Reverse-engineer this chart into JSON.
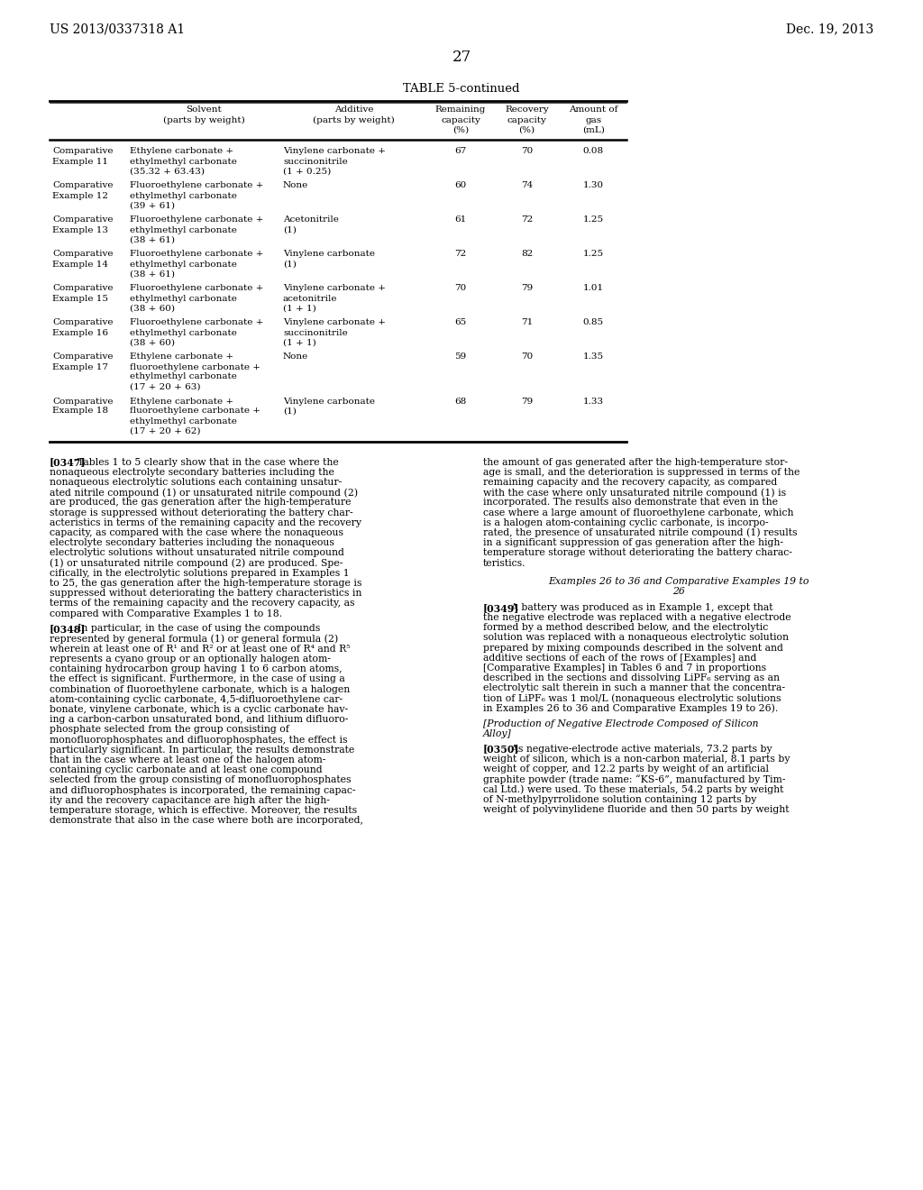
{
  "page_number": "27",
  "patent_number": "US 2013/0337318 A1",
  "patent_date": "Dec. 19, 2013",
  "table_title": "TABLE 5-continued",
  "col_headers_line1": [
    "",
    "Solvent",
    "Additive",
    "Remaining",
    "Recovery",
    "Amount of"
  ],
  "col_headers_line2": [
    "",
    "(parts by weight)",
    "(parts by weight)",
    "capacity",
    "capacity",
    "gas"
  ],
  "col_headers_line3": [
    "",
    "",
    "",
    "(%)",
    "(%)",
    "(mL)"
  ],
  "table_rows": [
    [
      "Comparative\nExample 11",
      "Ethylene carbonate +\nethylmethyl carbonate\n(35.32 + 63.43)",
      "Vinylene carbonate +\nsuccinonitrile\n(1 + 0.25)",
      "67",
      "70",
      "0.08"
    ],
    [
      "Comparative\nExample 12",
      "Fluoroethylene carbonate +\nethylmethyl carbonate\n(39 + 61)",
      "None",
      "60",
      "74",
      "1.30"
    ],
    [
      "Comparative\nExample 13",
      "Fluoroethylene carbonate +\nethylmethyl carbonate\n(38 + 61)",
      "Acetonitrile\n(1)",
      "61",
      "72",
      "1.25"
    ],
    [
      "Comparative\nExample 14",
      "Fluoroethylene carbonate +\nethylmethyl carbonate\n(38 + 61)",
      "Vinylene carbonate\n(1)",
      "72",
      "82",
      "1.25"
    ],
    [
      "Comparative\nExample 15",
      "Fluoroethylene carbonate +\nethylmethyl carbonate\n(38 + 60)",
      "Vinylene carbonate +\nacetonitrile\n(1 + 1)",
      "70",
      "79",
      "1.01"
    ],
    [
      "Comparative\nExample 16",
      "Fluoroethylene carbonate +\nethylmethyl carbonate\n(38 + 60)",
      "Vinylene carbonate +\nsuccinonitrile\n(1 + 1)",
      "65",
      "71",
      "0.85"
    ],
    [
      "Comparative\nExample 17",
      "Ethylene carbonate +\nfluoroethylene carbonate +\nethylmethyl carbonate\n(17 + 20 + 63)",
      "None",
      "59",
      "70",
      "1.35"
    ],
    [
      "Comparative\nExample 18",
      "Ethylene carbonate +\nfluoroethylene carbonate +\nethylmethyl carbonate\n(17 + 20 + 62)",
      "Vinylene carbonate\n(1)",
      "68",
      "79",
      "1.33"
    ]
  ],
  "left_col_lines": [
    {
      "bold_prefix": "[0347]",
      "lines": [
        "  Tables 1 to 5 clearly show that in the case where the",
        "nonaqueous electrolyte secondary batteries including the",
        "nonaqueous electrolytic solutions each containing unsatur-",
        "ated nitrile compound (1) or unsaturated nitrile compound (2)",
        "are produced, the gas generation after the high-temperature",
        "storage is suppressed without deteriorating the battery char-",
        "acteristics in terms of the remaining capacity and the recovery",
        "capacity, as compared with the case where the nonaqueous",
        "electrolyte secondary batteries including the nonaqueous",
        "electrolytic solutions without unsaturated nitrile compound",
        "(1) or unsaturated nitrile compound (2) are produced. Spe-",
        "cifically, in the electrolytic solutions prepared in Examples 1",
        "to 25, the gas generation after the high-temperature storage is",
        "suppressed without deteriorating the battery characteristics in",
        "terms of the remaining capacity and the recovery capacity, as",
        "compared with Comparative Examples 1 to 18."
      ]
    },
    {
      "bold_prefix": "[0348]",
      "lines": [
        "  In particular, in the case of using the compounds",
        "represented by general formula (1) or general formula (2)",
        "wherein at least one of R¹ and R² or at least one of R⁴ and R⁵",
        "represents a cyano group or an optionally halogen atom-",
        "containing hydrocarbon group having 1 to 6 carbon atoms,",
        "the effect is significant. Furthermore, in the case of using a",
        "combination of fluoroethylene carbonate, which is a halogen",
        "atom-containing cyclic carbonate, 4,5-difluoroethylene car-",
        "bonate, vinylene carbonate, which is a cyclic carbonate hav-",
        "ing a carbon-carbon unsaturated bond, and lithium difluoro-",
        "phosphate selected from the group consisting of",
        "monofluorophosphates and difluorophosphates, the effect is",
        "particularly significant. In particular, the results demonstrate",
        "that in the case where at least one of the halogen atom-",
        "containing cyclic carbonate and at least one compound",
        "selected from the group consisting of monofluorophosphates",
        "and difluorophosphates is incorporated, the remaining capac-",
        "ity and the recovery capacitance are high after the high-",
        "temperature storage, which is effective. Moreover, the results",
        "demonstrate that also in the case where both are incorporated,"
      ]
    }
  ],
  "right_col_lines": [
    {
      "bold_prefix": "",
      "lines": [
        "the amount of gas generated after the high-temperature stor-",
        "age is small, and the deterioration is suppressed in terms of the",
        "remaining capacity and the recovery capacity, as compared",
        "with the case where only unsaturated nitrile compound (1) is",
        "incorporated. The results also demonstrate that even in the",
        "case where a large amount of fluoroethylene carbonate, which",
        "is a halogen atom-containing cyclic carbonate, is incorpo-",
        "rated, the presence of unsaturated nitrile compound (1) results",
        "in a significant suppression of gas generation after the high-",
        "temperature storage without deteriorating the battery charac-",
        "teristics."
      ]
    },
    {
      "bold_prefix": "center_italic",
      "lines": [
        "Examples 26 to 36 and Comparative Examples 19 to",
        "26"
      ]
    },
    {
      "bold_prefix": "[0349]",
      "lines": [
        "  A battery was produced as in Example 1, except that",
        "the negative electrode was replaced with a negative electrode",
        "formed by a method described below, and the electrolytic",
        "solution was replaced with a nonaqueous electrolytic solution",
        "prepared by mixing compounds described in the solvent and",
        "additive sections of each of the rows of [Examples] and",
        "[Comparative Examples] in Tables 6 and 7 in proportions",
        "described in the sections and dissolving LiPF₆ serving as an",
        "electrolytic salt therein in such a manner that the concentra-",
        "tion of LiPF₆ was 1 mol/L (nonaqueous electrolytic solutions",
        "in Examples 26 to 36 and Comparative Examples 19 to 26)."
      ]
    },
    {
      "bold_prefix": "italic_left",
      "lines": [
        "[Production of Negative Electrode Composed of Silicon",
        "Alloy]"
      ]
    },
    {
      "bold_prefix": "[0350]",
      "lines": [
        "  As negative-electrode active materials, 73.2 parts by",
        "weight of silicon, which is a non-carbon material, 8.1 parts by",
        "weight of copper, and 12.2 parts by weight of an artificial",
        "graphite powder (trade name: “KS-6”, manufactured by Tim-",
        "cal Ltd.) were used. To these materials, 54.2 parts by weight",
        "of N-methylpyrrolidone solution containing 12 parts by",
        "weight of polyvinylidene fluoride and then 50 parts by weight"
      ]
    }
  ]
}
